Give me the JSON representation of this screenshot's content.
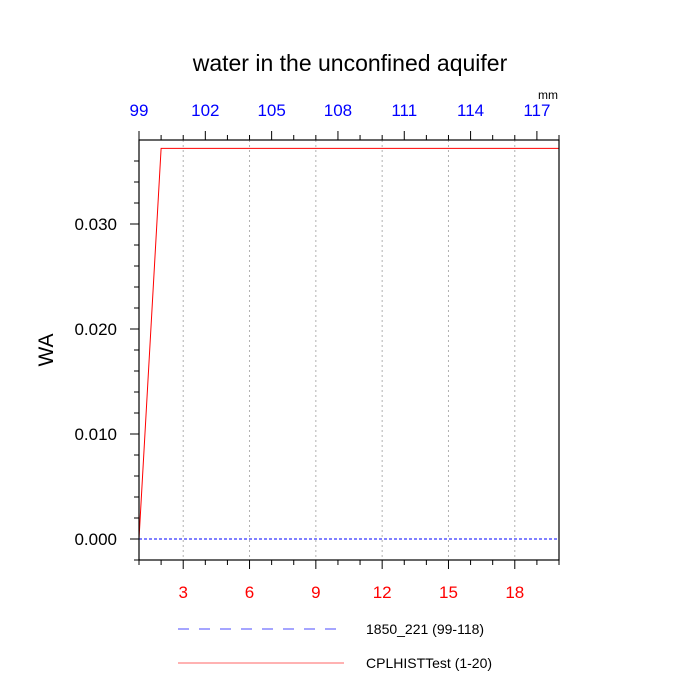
{
  "chart_data": {
    "type": "line",
    "title": "water in the unconfined aquifer",
    "ylabel": "WA",
    "top_axis_unit": "mm",
    "ylim": [
      -0.002,
      0.038
    ],
    "y_ticks": [
      0.0,
      0.01,
      0.02,
      0.03
    ],
    "y_tick_labels": [
      "0.000",
      "0.010",
      "0.020",
      "0.030"
    ],
    "x_bottom": {
      "range": [
        1,
        20
      ],
      "ticks": [
        3,
        6,
        9,
        12,
        15,
        18
      ],
      "tick_labels": [
        "3",
        "6",
        "9",
        "12",
        "15",
        "18"
      ],
      "color": "#ff0000"
    },
    "x_top": {
      "range": [
        99,
        118
      ],
      "ticks": [
        99,
        102,
        105,
        108,
        111,
        114,
        117
      ],
      "tick_labels": [
        "99",
        "102",
        "105",
        "108",
        "111",
        "114",
        "117"
      ],
      "color": "#0000ff"
    },
    "grid": "vertical dotted",
    "series": [
      {
        "name": "1850_221 (99-118)",
        "axis": "top",
        "color": "#0000ff",
        "style": "dashed",
        "x": [
          99,
          100,
          101,
          102,
          103,
          104,
          105,
          106,
          107,
          108,
          109,
          110,
          111,
          112,
          113,
          114,
          115,
          116,
          117,
          118
        ],
        "values": [
          0,
          0,
          0,
          0,
          0,
          0,
          0,
          0,
          0,
          0,
          0,
          0,
          0,
          0,
          0,
          0,
          0,
          0,
          0,
          0
        ]
      },
      {
        "name": "CPLHISTTest (1-20)",
        "axis": "bottom",
        "color": "#ff0000",
        "style": "solid",
        "x": [
          1,
          2,
          3,
          4,
          5,
          6,
          7,
          8,
          9,
          10,
          11,
          12,
          13,
          14,
          15,
          16,
          17,
          18,
          19,
          20
        ],
        "values": [
          0,
          0.0372,
          0.0372,
          0.0372,
          0.0372,
          0.0372,
          0.0372,
          0.0372,
          0.0372,
          0.0372,
          0.0372,
          0.0372,
          0.0372,
          0.0372,
          0.0372,
          0.0372,
          0.0372,
          0.0372,
          0.0372,
          0.0372
        ]
      }
    ],
    "legend_position": "bottom"
  }
}
